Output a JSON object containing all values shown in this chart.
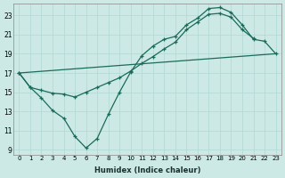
{
  "xlabel": "Humidex (Indice chaleur)",
  "bg_color": "#cce9e5",
  "grid_color": "#b0d8d4",
  "line_color": "#1a6b5a",
  "xlim": [
    -0.5,
    23.5
  ],
  "ylim": [
    8.5,
    24.2
  ],
  "yticks": [
    9,
    11,
    13,
    15,
    17,
    19,
    21,
    23
  ],
  "xticks": [
    0,
    1,
    2,
    3,
    4,
    5,
    6,
    7,
    8,
    9,
    10,
    11,
    12,
    13,
    14,
    15,
    16,
    17,
    18,
    19,
    20,
    21,
    22,
    23
  ],
  "curve1_x": [
    0,
    1,
    2,
    3,
    4,
    5,
    6,
    7,
    8,
    9,
    10,
    11,
    12,
    13,
    14,
    15,
    16,
    17,
    18,
    19,
    20,
    21,
    22,
    23
  ],
  "curve1_y": [
    17.0,
    15.5,
    14.4,
    13.1,
    12.3,
    10.4,
    9.2,
    10.2,
    12.7,
    15.0,
    17.1,
    18.8,
    19.8,
    20.5,
    20.8,
    22.0,
    22.7,
    23.7,
    23.8,
    23.3,
    22.0,
    20.5,
    20.3,
    19.0
  ],
  "curve2_x": [
    0,
    1,
    2,
    3,
    4,
    5,
    6,
    7,
    8,
    9,
    10,
    11,
    12,
    13,
    14,
    15,
    16,
    17,
    18,
    19,
    20,
    21,
    22,
    23
  ],
  "curve2_y": [
    17.0,
    15.5,
    15.2,
    14.9,
    14.8,
    14.5,
    15.0,
    15.5,
    16.0,
    16.5,
    17.2,
    18.0,
    18.7,
    19.5,
    20.2,
    21.5,
    22.3,
    23.1,
    23.2,
    22.8,
    21.5,
    20.6,
    null,
    null
  ],
  "curve3_x": [
    0,
    23
  ],
  "curve3_y": [
    17.0,
    19.0
  ]
}
